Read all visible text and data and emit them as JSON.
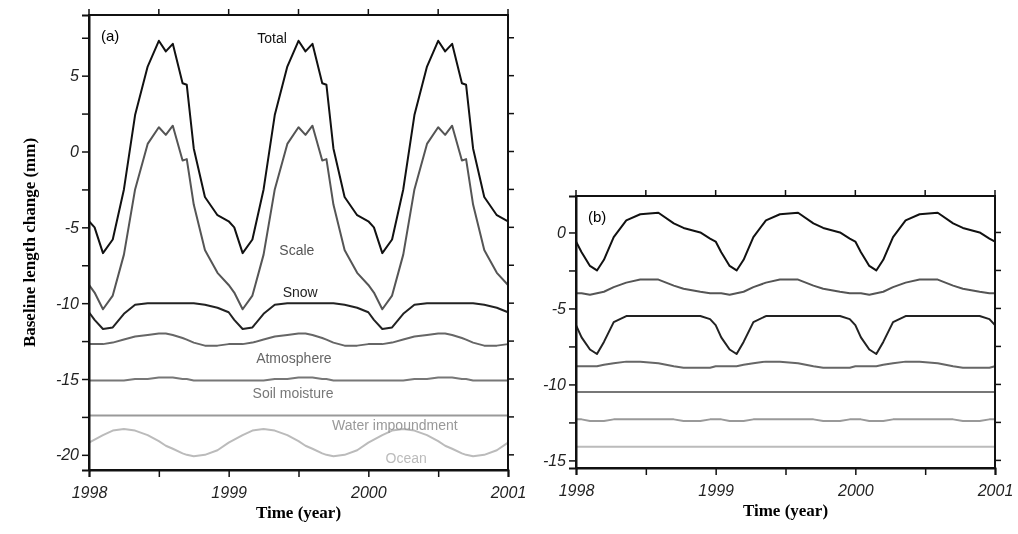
{
  "chart_data": [
    {
      "type": "line",
      "xlabel": "Time (year)",
      "ylabel": "Baseline length change (mm)",
      "annotations": [
        "(a)"
      ],
      "x": [
        1998,
        1998.04,
        1998.1,
        1998.17,
        1998.25,
        1998.33,
        1998.42,
        1998.5,
        1998.55,
        1998.6,
        1998.67,
        1998.7,
        1998.75,
        1998.83,
        1998.92,
        1999,
        1999.04,
        1999.1,
        1999.17,
        1999.25,
        1999.33,
        1999.42,
        1999.5,
        1999.55,
        1999.6,
        1999.67,
        1999.7,
        1999.75,
        1999.83,
        1999.92,
        2000,
        2000.04,
        2000.1,
        2000.17,
        2000.25,
        2000.33,
        2000.42,
        2000.5,
        2000.55,
        2000.6,
        2000.67,
        2000.7,
        2000.75,
        2000.83,
        2000.92,
        2001
      ],
      "xlim": [
        1998,
        2001
      ],
      "xticks": [
        1998,
        {
          "value": 1998.5,
          "label": null
        },
        1999,
        {
          "value": 1999.5,
          "label": null
        },
        2000,
        {
          "value": 2000.5,
          "label": null
        },
        2001
      ],
      "ylim": [
        -21,
        9
      ],
      "yticks": [
        -20,
        {
          "value": -17.5,
          "label": null
        },
        -15,
        {
          "value": -12.5,
          "label": null
        },
        -10,
        {
          "value": -7.5,
          "label": null
        },
        -5,
        {
          "value": -2.5,
          "label": null
        },
        0,
        {
          "value": 2.5,
          "label": null
        },
        5,
        {
          "value": 7.5,
          "label": null
        }
      ],
      "series": [
        {
          "name": "Total",
          "color": "#111111",
          "values": [
            -4.6,
            -5.0,
            -6.7,
            -5.8,
            -2.5,
            2.4,
            5.6,
            7.3,
            6.6,
            7.1,
            4.5,
            4.4,
            0.2,
            -3.0,
            -4.2,
            -4.6,
            -5.0,
            -6.7,
            -5.8,
            -2.5,
            2.4,
            5.6,
            7.3,
            6.6,
            7.1,
            4.5,
            4.4,
            0.2,
            -3.0,
            -4.2,
            -4.6,
            -5.0,
            -6.7,
            -5.8,
            -2.5,
            2.4,
            5.6,
            7.3,
            6.6,
            7.1,
            4.5,
            4.4,
            0.2,
            -3.0,
            -4.2,
            -4.6
          ]
        },
        {
          "name": "Scale",
          "color": "#555555",
          "values": [
            -8.8,
            -9.3,
            -10.4,
            -9.5,
            -6.8,
            -2.5,
            0.5,
            1.6,
            1.1,
            1.7,
            -0.6,
            -0.5,
            -3.5,
            -6.5,
            -8.0,
            -8.8,
            -9.3,
            -10.4,
            -9.5,
            -6.8,
            -2.5,
            0.5,
            1.6,
            1.1,
            1.7,
            -0.6,
            -0.5,
            -3.5,
            -6.5,
            -8.0,
            -8.8,
            -9.3,
            -10.4,
            -9.5,
            -6.8,
            -2.5,
            0.5,
            1.6,
            1.1,
            1.7,
            -0.6,
            -0.5,
            -3.5,
            -6.5,
            -8.0,
            -8.8
          ]
        },
        {
          "name": "Snow",
          "color": "#222222",
          "values": [
            -10.6,
            -11.1,
            -11.7,
            -11.6,
            -10.7,
            -10.1,
            -10,
            -10,
            -10,
            -10,
            -10,
            -10,
            -10,
            -10.1,
            -10.3,
            -10.6,
            -11.1,
            -11.7,
            -11.6,
            -10.7,
            -10.1,
            -10,
            -10,
            -10,
            -10,
            -10,
            -10,
            -10,
            -10.1,
            -10.3,
            -10.6,
            -11.1,
            -11.7,
            -11.6,
            -10.7,
            -10.1,
            -10,
            -10,
            -10,
            -10,
            -10,
            -10,
            -10,
            -10.1,
            -10.3,
            -10.6
          ]
        },
        {
          "name": "Atmosphere",
          "color": "#666666",
          "values": [
            -12.7,
            -12.7,
            -12.7,
            -12.6,
            -12.4,
            -12.2,
            -12.1,
            -12.0,
            -12.0,
            -12.1,
            -12.3,
            -12.4,
            -12.6,
            -12.8,
            -12.8,
            -12.7,
            -12.7,
            -12.7,
            -12.6,
            -12.4,
            -12.2,
            -12.1,
            -12.0,
            -12.0,
            -12.1,
            -12.3,
            -12.4,
            -12.6,
            -12.8,
            -12.8,
            -12.7,
            -12.7,
            -12.7,
            -12.6,
            -12.4,
            -12.2,
            -12.1,
            -12.0,
            -12.0,
            -12.1,
            -12.3,
            -12.4,
            -12.6,
            -12.8,
            -12.8,
            -12.7
          ]
        },
        {
          "name": "Soil moisture",
          "color": "#777777",
          "values": [
            -15.1,
            -15.1,
            -15.1,
            -15.1,
            -15.1,
            -15.0,
            -15.0,
            -14.9,
            -14.9,
            -14.9,
            -15.0,
            -15.0,
            -15.1,
            -15.1,
            -15.1,
            -15.1,
            -15.1,
            -15.1,
            -15.1,
            -15.1,
            -15.0,
            -15.0,
            -14.9,
            -14.9,
            -14.9,
            -15.0,
            -15.0,
            -15.1,
            -15.1,
            -15.1,
            -15.1,
            -15.1,
            -15.1,
            -15.1,
            -15.1,
            -15.0,
            -15.0,
            -14.9,
            -14.9,
            -14.9,
            -15.0,
            -15.0,
            -15.1,
            -15.1,
            -15.1,
            -15.1
          ]
        },
        {
          "name": "Water impoundment",
          "color": "#999999",
          "values": [
            -17.4,
            -17.4,
            -17.4,
            -17.4,
            -17.4,
            -17.4,
            -17.4,
            -17.4,
            -17.4,
            -17.4,
            -17.4,
            -17.4,
            -17.4,
            -17.4,
            -17.4,
            -17.4,
            -17.4,
            -17.4,
            -17.4,
            -17.4,
            -17.4,
            -17.4,
            -17.4,
            -17.4,
            -17.4,
            -17.4,
            -17.4,
            -17.4,
            -17.4,
            -17.4,
            -17.4,
            -17.4,
            -17.4,
            -17.4,
            -17.4,
            -17.4,
            -17.4,
            -17.4,
            -17.4,
            -17.4,
            -17.4,
            -17.4,
            -17.4,
            -17.4,
            -17.4,
            -17.4
          ]
        },
        {
          "name": "Ocean",
          "color": "#bbbbbb",
          "values": [
            -19.2,
            -19.0,
            -18.7,
            -18.4,
            -18.3,
            -18.4,
            -18.7,
            -19.1,
            -19.4,
            -19.6,
            -19.9,
            -20.0,
            -20.1,
            -20.0,
            -19.7,
            -19.2,
            -19.0,
            -18.7,
            -18.4,
            -18.3,
            -18.4,
            -18.7,
            -19.1,
            -19.4,
            -19.6,
            -19.9,
            -20.0,
            -20.1,
            -20.0,
            -19.7,
            -19.2,
            -19.0,
            -18.7,
            -18.4,
            -18.3,
            -18.4,
            -18.7,
            -19.1,
            -19.4,
            -19.6,
            -19.9,
            -20.0,
            -20.1,
            -20.0,
            -19.7,
            -19.2
          ]
        }
      ]
    },
    {
      "type": "line",
      "xlabel": "Time (year)",
      "annotations": [
        "(b)"
      ],
      "x": [
        1998,
        1998.04,
        1998.1,
        1998.15,
        1998.2,
        1998.27,
        1998.36,
        1998.46,
        1998.59,
        1998.7,
        1998.77,
        1998.89,
        1998.96,
        1999,
        1999.04,
        1999.1,
        1999.15,
        1999.2,
        1999.27,
        1999.36,
        1999.46,
        1999.59,
        1999.7,
        1999.77,
        1999.89,
        1999.96,
        2000,
        2000.04,
        2000.1,
        2000.15,
        2000.2,
        2000.27,
        2000.36,
        2000.46,
        2000.59,
        2000.7,
        2000.77,
        2000.89,
        2000.96,
        2001
      ],
      "xlim": [
        1998,
        2001
      ],
      "xticks": [
        1998,
        {
          "value": 1998.5,
          "label": null
        },
        1999,
        {
          "value": 1999.5,
          "label": null
        },
        2000,
        {
          "value": 2000.5,
          "label": null
        },
        2001
      ],
      "ylim": [
        -15.5,
        2.4
      ],
      "yticks": [
        -15,
        {
          "value": -12.5,
          "label": null
        },
        -10,
        {
          "value": -7.5,
          "label": null
        },
        -5,
        {
          "value": -2.5,
          "label": null
        },
        0
      ],
      "series": [
        {
          "color": "#111111",
          "values": [
            -0.6,
            -1.3,
            -2.2,
            -2.5,
            -1.8,
            -0.3,
            0.8,
            1.2,
            1.3,
            0.6,
            0.3,
            0,
            -0.4,
            -0.6,
            -1.3,
            -2.2,
            -2.5,
            -1.8,
            -0.3,
            0.8,
            1.2,
            1.3,
            0.6,
            0.3,
            0,
            -0.4,
            -0.6,
            -1.3,
            -2.2,
            -2.5,
            -1.8,
            -0.3,
            0.8,
            1.2,
            1.3,
            0.6,
            0.3,
            0,
            -0.4,
            -0.6
          ]
        },
        {
          "color": "#555555",
          "values": [
            -4.0,
            -4.0,
            -4.1,
            -4.0,
            -3.9,
            -3.6,
            -3.3,
            -3.1,
            -3.1,
            -3.5,
            -3.7,
            -3.9,
            -4.0,
            -4.0,
            -4.0,
            -4.1,
            -4.0,
            -3.9,
            -3.6,
            -3.3,
            -3.1,
            -3.1,
            -3.5,
            -3.7,
            -3.9,
            -4.0,
            -4.0,
            -4.0,
            -4.1,
            -4.0,
            -3.9,
            -3.6,
            -3.3,
            -3.1,
            -3.1,
            -3.5,
            -3.7,
            -3.9,
            -4.0,
            -4.0
          ]
        },
        {
          "color": "#222222",
          "values": [
            -6.1,
            -6.9,
            -7.7,
            -8.0,
            -7.2,
            -5.9,
            -5.5,
            -5.5,
            -5.5,
            -5.5,
            -5.5,
            -5.5,
            -5.7,
            -6.1,
            -6.9,
            -7.7,
            -8.0,
            -7.2,
            -5.9,
            -5.5,
            -5.5,
            -5.5,
            -5.5,
            -5.5,
            -5.5,
            -5.7,
            -6.1,
            -6.9,
            -7.7,
            -8.0,
            -7.2,
            -5.9,
            -5.5,
            -5.5,
            -5.5,
            -5.5,
            -5.5,
            -5.5,
            -5.7,
            -6.1
          ]
        },
        {
          "color": "#666666",
          "values": [
            -8.8,
            -8.8,
            -8.8,
            -8.8,
            -8.7,
            -8.6,
            -8.5,
            -8.5,
            -8.6,
            -8.8,
            -8.9,
            -8.9,
            -8.9,
            -8.8,
            -8.8,
            -8.8,
            -8.8,
            -8.7,
            -8.6,
            -8.5,
            -8.5,
            -8.6,
            -8.8,
            -8.9,
            -8.9,
            -8.9,
            -8.8,
            -8.8,
            -8.8,
            -8.8,
            -8.7,
            -8.6,
            -8.5,
            -8.5,
            -8.6,
            -8.8,
            -8.9,
            -8.9,
            -8.9,
            -8.8
          ]
        },
        {
          "color": "#777777",
          "values": [
            -10.5,
            -10.5,
            -10.5,
            -10.5,
            -10.5,
            -10.5,
            -10.5,
            -10.5,
            -10.5,
            -10.5,
            -10.5,
            -10.5,
            -10.5,
            -10.5,
            -10.5,
            -10.5,
            -10.5,
            -10.5,
            -10.5,
            -10.5,
            -10.5,
            -10.5,
            -10.5,
            -10.5,
            -10.5,
            -10.5,
            -10.5,
            -10.5,
            -10.5,
            -10.5,
            -10.5,
            -10.5,
            -10.5,
            -10.5,
            -10.5,
            -10.5,
            -10.5,
            -10.5,
            -10.5,
            -10.5
          ]
        },
        {
          "color": "#999999",
          "values": [
            -12.3,
            -12.3,
            -12.4,
            -12.4,
            -12.4,
            -12.3,
            -12.3,
            -12.3,
            -12.3,
            -12.3,
            -12.4,
            -12.4,
            -12.3,
            -12.3,
            -12.3,
            -12.4,
            -12.4,
            -12.4,
            -12.3,
            -12.3,
            -12.3,
            -12.3,
            -12.3,
            -12.4,
            -12.4,
            -12.3,
            -12.3,
            -12.3,
            -12.4,
            -12.4,
            -12.4,
            -12.3,
            -12.3,
            -12.3,
            -12.3,
            -12.3,
            -12.4,
            -12.4,
            -12.3,
            -12.3
          ]
        },
        {
          "color": "#bbbbbb",
          "values": [
            -14.1,
            -14.1,
            -14.1,
            -14.1,
            -14.1,
            -14.1,
            -14.1,
            -14.1,
            -14.1,
            -14.1,
            -14.1,
            -14.1,
            -14.1,
            -14.1,
            -14.1,
            -14.1,
            -14.1,
            -14.1,
            -14.1,
            -14.1,
            -14.1,
            -14.1,
            -14.1,
            -14.1,
            -14.1,
            -14.1,
            -14.1,
            -14.1,
            -14.1,
            -14.1,
            -14.1,
            -14.1,
            -14.1,
            -14.1,
            -14.1,
            -14.1,
            -14.1,
            -14.1,
            -14.1,
            -14.1
          ]
        }
      ]
    }
  ]
}
